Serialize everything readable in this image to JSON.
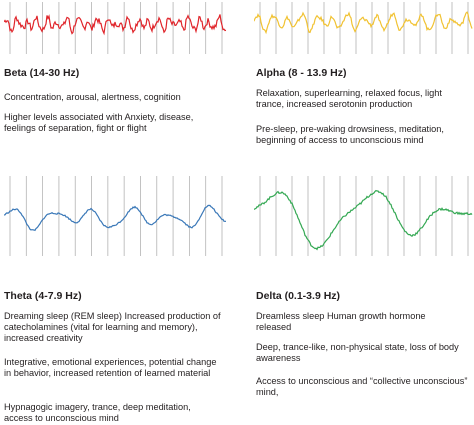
{
  "panels": [
    {
      "id": "beta",
      "title": "Beta (14-30 Hz)",
      "color": "#e0242a",
      "paragraphs": [
        "Concentration, arousal, alertness, cognition",
        "Higher levels associated with Anxiety, disease, feelings of separation, fight or flight"
      ]
    },
    {
      "id": "alpha",
      "title": "Alpha (8 - 13.9 Hz)",
      "color": "#f1c232",
      "paragraphs": [
        "Relaxation, superlearning, relaxed focus, light trance, increased serotonin production",
        "Pre-sleep, pre-waking drowsiness, meditation, beginning of access to unconscious mind"
      ]
    },
    {
      "id": "theta",
      "title": "Theta (4-7.9 Hz)",
      "color": "#3a78b8",
      "paragraphs": [
        "Dreaming sleep (REM sleep) Increased production of catecholamines (vital for learning and memory), increased creativity",
        "Integrative, emotional experiences, potential change in behavior, increased retention of learned material",
        "Hypnagogic imagery, trance, deep meditation, access to unconscious mind"
      ]
    },
    {
      "id": "delta",
      "title": "Delta (0.1-3.9 Hz)",
      "color": "#34a853",
      "paragraphs": [
        "Dreamless sleep Human growth hormone released",
        "Deep, trance-like, non-physical state, loss of body awareness",
        "Access to unconscious and “collective unconscious” mind,"
      ]
    }
  ]
}
